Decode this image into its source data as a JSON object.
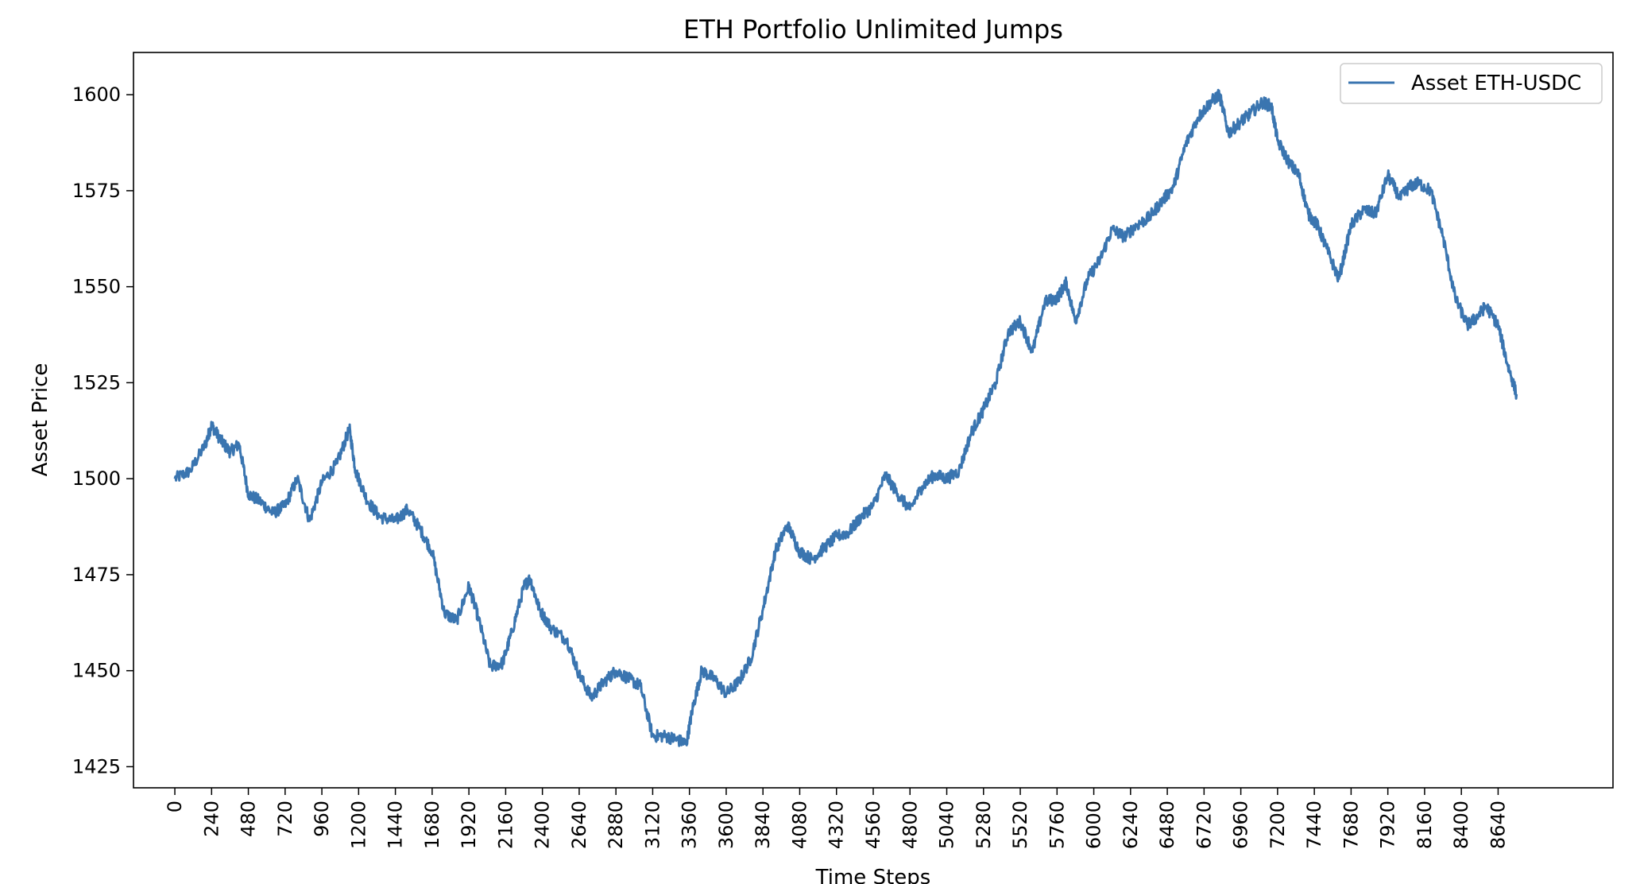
{
  "chart_data": {
    "type": "line",
    "title": "ETH Portfolio Unlimited Jumps",
    "xlabel": "Time Steps",
    "ylabel": "Asset Price",
    "xlim": [
      -270,
      9390
    ],
    "ylim": [
      1419.5,
      1611
    ],
    "xticks": [
      0,
      240,
      480,
      720,
      960,
      1200,
      1440,
      1680,
      1920,
      2160,
      2400,
      2640,
      2880,
      3120,
      3360,
      3600,
      3840,
      4080,
      4320,
      4560,
      4800,
      5040,
      5280,
      5520,
      5760,
      6000,
      6240,
      6480,
      6720,
      6960,
      7200,
      7440,
      7680,
      7920,
      8160,
      8400,
      8640
    ],
    "yticks": [
      1425,
      1450,
      1475,
      1500,
      1525,
      1550,
      1575,
      1600
    ],
    "grid": false,
    "legend_position": "top-right",
    "series": [
      {
        "name": "Asset ETH-USDC",
        "color": "#3a75b0",
        "x": [
          0,
          100,
          200,
          240,
          300,
          360,
          420,
          480,
          560,
          640,
          720,
          800,
          880,
          960,
          1060,
          1140,
          1180,
          1260,
          1340,
          1440,
          1520,
          1600,
          1680,
          1760,
          1840,
          1920,
          1980,
          2060,
          2140,
          2200,
          2280,
          2320,
          2380,
          2460,
          2560,
          2640,
          2720,
          2800,
          2880,
          2960,
          3040,
          3120,
          3200,
          3280,
          3340,
          3380,
          3440,
          3520,
          3600,
          3680,
          3760,
          3840,
          3920,
          4000,
          4080,
          4160,
          4240,
          4320,
          4400,
          4480,
          4560,
          4640,
          4720,
          4800,
          4880,
          4960,
          5040,
          5120,
          5200,
          5280,
          5360,
          5440,
          5520,
          5600,
          5680,
          5760,
          5820,
          5880,
          5960,
          6040,
          6120,
          6200,
          6280,
          6360,
          6440,
          6520,
          6600,
          6680,
          6760,
          6820,
          6880,
          6960,
          7020,
          7100,
          7160,
          7200,
          7280,
          7340,
          7400,
          7460,
          7520,
          7600,
          7680,
          7760,
          7840,
          7920,
          8000,
          8060,
          8120,
          8200,
          8280,
          8360,
          8440,
          8500,
          8560,
          8640,
          8700,
          8760
        ],
        "y": [
          1500,
          1502,
          1509,
          1514,
          1510,
          1507,
          1509,
          1496,
          1494,
          1491,
          1493,
          1500,
          1489,
          1499,
          1504,
          1513,
          1502,
          1494,
          1490,
          1489,
          1492,
          1487,
          1481,
          1465,
          1463,
          1472,
          1464,
          1451,
          1452,
          1460,
          1472,
          1474,
          1466,
          1461,
          1458,
          1449,
          1443,
          1447,
          1450,
          1448,
          1446,
          1433,
          1433,
          1432,
          1431,
          1440,
          1450,
          1448,
          1444,
          1447,
          1453,
          1466,
          1481,
          1488,
          1481,
          1479,
          1482,
          1485,
          1486,
          1490,
          1493,
          1501,
          1496,
          1492,
          1498,
          1501,
          1500,
          1502,
          1512,
          1518,
          1525,
          1538,
          1541,
          1533,
          1546,
          1547,
          1551,
          1541,
          1552,
          1557,
          1565,
          1563,
          1566,
          1568,
          1572,
          1576,
          1587,
          1594,
          1598,
          1600,
          1590,
          1593,
          1595,
          1598,
          1597,
          1588,
          1582,
          1579,
          1569,
          1566,
          1560,
          1552,
          1566,
          1570,
          1569,
          1579,
          1573,
          1576,
          1577,
          1575,
          1563,
          1547,
          1540,
          1542,
          1545,
          1540,
          1530,
          1522
        ]
      }
    ]
  }
}
